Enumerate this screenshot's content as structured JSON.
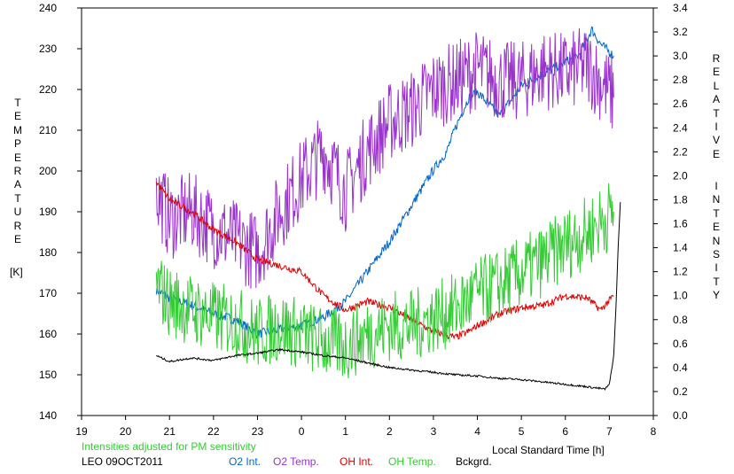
{
  "chart_data": {
    "type": "line",
    "note_label": "Intensities adjusted for PM sensitivity",
    "station_label": "LEO 09OCT2011",
    "xlabel": "Local Standard Time [h]",
    "ylabel_left": "TEMPERATURE",
    "ylabel_left_unit": "[K]",
    "ylabel_right_1": "RELATIVE",
    "ylabel_right_2": "INTENSITY",
    "x_ticks": [
      "19",
      "20",
      "21",
      "22",
      "23",
      "0",
      "1",
      "2",
      "3",
      "4",
      "5",
      "6",
      "7",
      "8"
    ],
    "xlim": [
      19,
      32
    ],
    "ylim_left": [
      140,
      240
    ],
    "y_ticks_left": [
      "140",
      "150",
      "160",
      "170",
      "180",
      "190",
      "200",
      "210",
      "220",
      "230",
      "240"
    ],
    "ylim_right": [
      0.0,
      3.4
    ],
    "y_ticks_right": [
      "0.0",
      "0.2",
      "0.4",
      "0.6",
      "0.8",
      "1.0",
      "1.2",
      "1.4",
      "1.6",
      "1.8",
      "2.0",
      "2.2",
      "2.4",
      "2.6",
      "2.8",
      "3.0",
      "3.2",
      "3.4"
    ],
    "grid": false,
    "series": [
      {
        "name": "O2 Int.",
        "axis": "right",
        "color": "#0066cc",
        "noise": 0.04,
        "x": [
          20.7,
          21.0,
          21.5,
          22.0,
          22.5,
          23.0,
          23.5,
          24.0,
          24.5,
          25.0,
          25.5,
          26.0,
          26.5,
          27.0,
          27.3,
          27.5,
          27.8,
          28.0,
          28.5,
          29.0,
          29.5,
          30.0,
          30.3,
          30.6,
          30.8,
          31.1
        ],
        "y": [
          1.05,
          0.98,
          0.92,
          0.85,
          0.8,
          0.68,
          0.72,
          0.75,
          0.82,
          0.95,
          1.2,
          1.45,
          1.75,
          2.05,
          2.2,
          2.4,
          2.65,
          2.7,
          2.5,
          2.75,
          2.85,
          2.95,
          3.0,
          3.22,
          3.1,
          3.0
        ]
      },
      {
        "name": "O2 Temp.",
        "axis": "left",
        "color": "#9933cc",
        "noise": 10,
        "x": [
          20.7,
          21.0,
          21.5,
          22.0,
          22.5,
          23.0,
          23.5,
          24.0,
          24.5,
          25.0,
          25.5,
          26.0,
          26.5,
          27.0,
          27.5,
          28.0,
          28.5,
          29.0,
          29.5,
          30.0,
          30.5,
          31.1
        ],
        "y": [
          195,
          188,
          190,
          186,
          183,
          180,
          190,
          198,
          205,
          195,
          205,
          212,
          215,
          220,
          222,
          225,
          222,
          222,
          225,
          224,
          226,
          218
        ]
      },
      {
        "name": "OH Int.",
        "axis": "right",
        "color": "#dd0000",
        "noise": 0.03,
        "x": [
          20.7,
          21.0,
          21.5,
          22.0,
          22.5,
          23.0,
          23.5,
          24.0,
          24.5,
          25.0,
          25.5,
          26.0,
          26.5,
          27.0,
          27.5,
          27.8,
          28.0,
          28.5,
          29.0,
          29.5,
          30.0,
          30.5,
          30.8,
          31.1
        ],
        "y": [
          1.95,
          1.8,
          1.7,
          1.55,
          1.45,
          1.3,
          1.25,
          1.2,
          1.0,
          0.88,
          0.95,
          0.9,
          0.8,
          0.7,
          0.65,
          0.7,
          0.75,
          0.85,
          0.9,
          0.92,
          1.0,
          0.98,
          0.88,
          1.0
        ]
      },
      {
        "name": "OH Temp.",
        "axis": "left",
        "color": "#33cc33",
        "noise": 9,
        "x": [
          20.7,
          21.0,
          21.5,
          22.0,
          22.5,
          23.0,
          23.5,
          24.0,
          24.5,
          25.0,
          25.5,
          26.0,
          26.5,
          27.0,
          27.5,
          28.0,
          28.5,
          29.0,
          29.5,
          30.0,
          30.5,
          31.1
        ],
        "y": [
          172,
          168,
          166,
          164,
          163,
          160,
          162,
          160,
          158,
          157,
          160,
          162,
          162,
          164,
          166,
          170,
          172,
          175,
          178,
          182,
          185,
          190
        ]
      },
      {
        "name": "Bckgrd.",
        "axis": "right",
        "color": "#000000",
        "noise": 0.008,
        "x": [
          20.7,
          21.0,
          21.5,
          22.0,
          22.5,
          23.0,
          23.5,
          24.0,
          24.5,
          25.0,
          25.5,
          26.0,
          26.5,
          27.0,
          27.5,
          28.0,
          28.5,
          29.0,
          29.5,
          30.0,
          30.5,
          30.9,
          31.0,
          31.1,
          31.15,
          31.2,
          31.25
        ],
        "y": [
          0.5,
          0.45,
          0.48,
          0.46,
          0.5,
          0.52,
          0.55,
          0.53,
          0.5,
          0.48,
          0.44,
          0.4,
          0.38,
          0.36,
          0.34,
          0.33,
          0.31,
          0.3,
          0.28,
          0.26,
          0.24,
          0.22,
          0.26,
          0.5,
          0.9,
          1.4,
          1.78
        ]
      }
    ]
  }
}
